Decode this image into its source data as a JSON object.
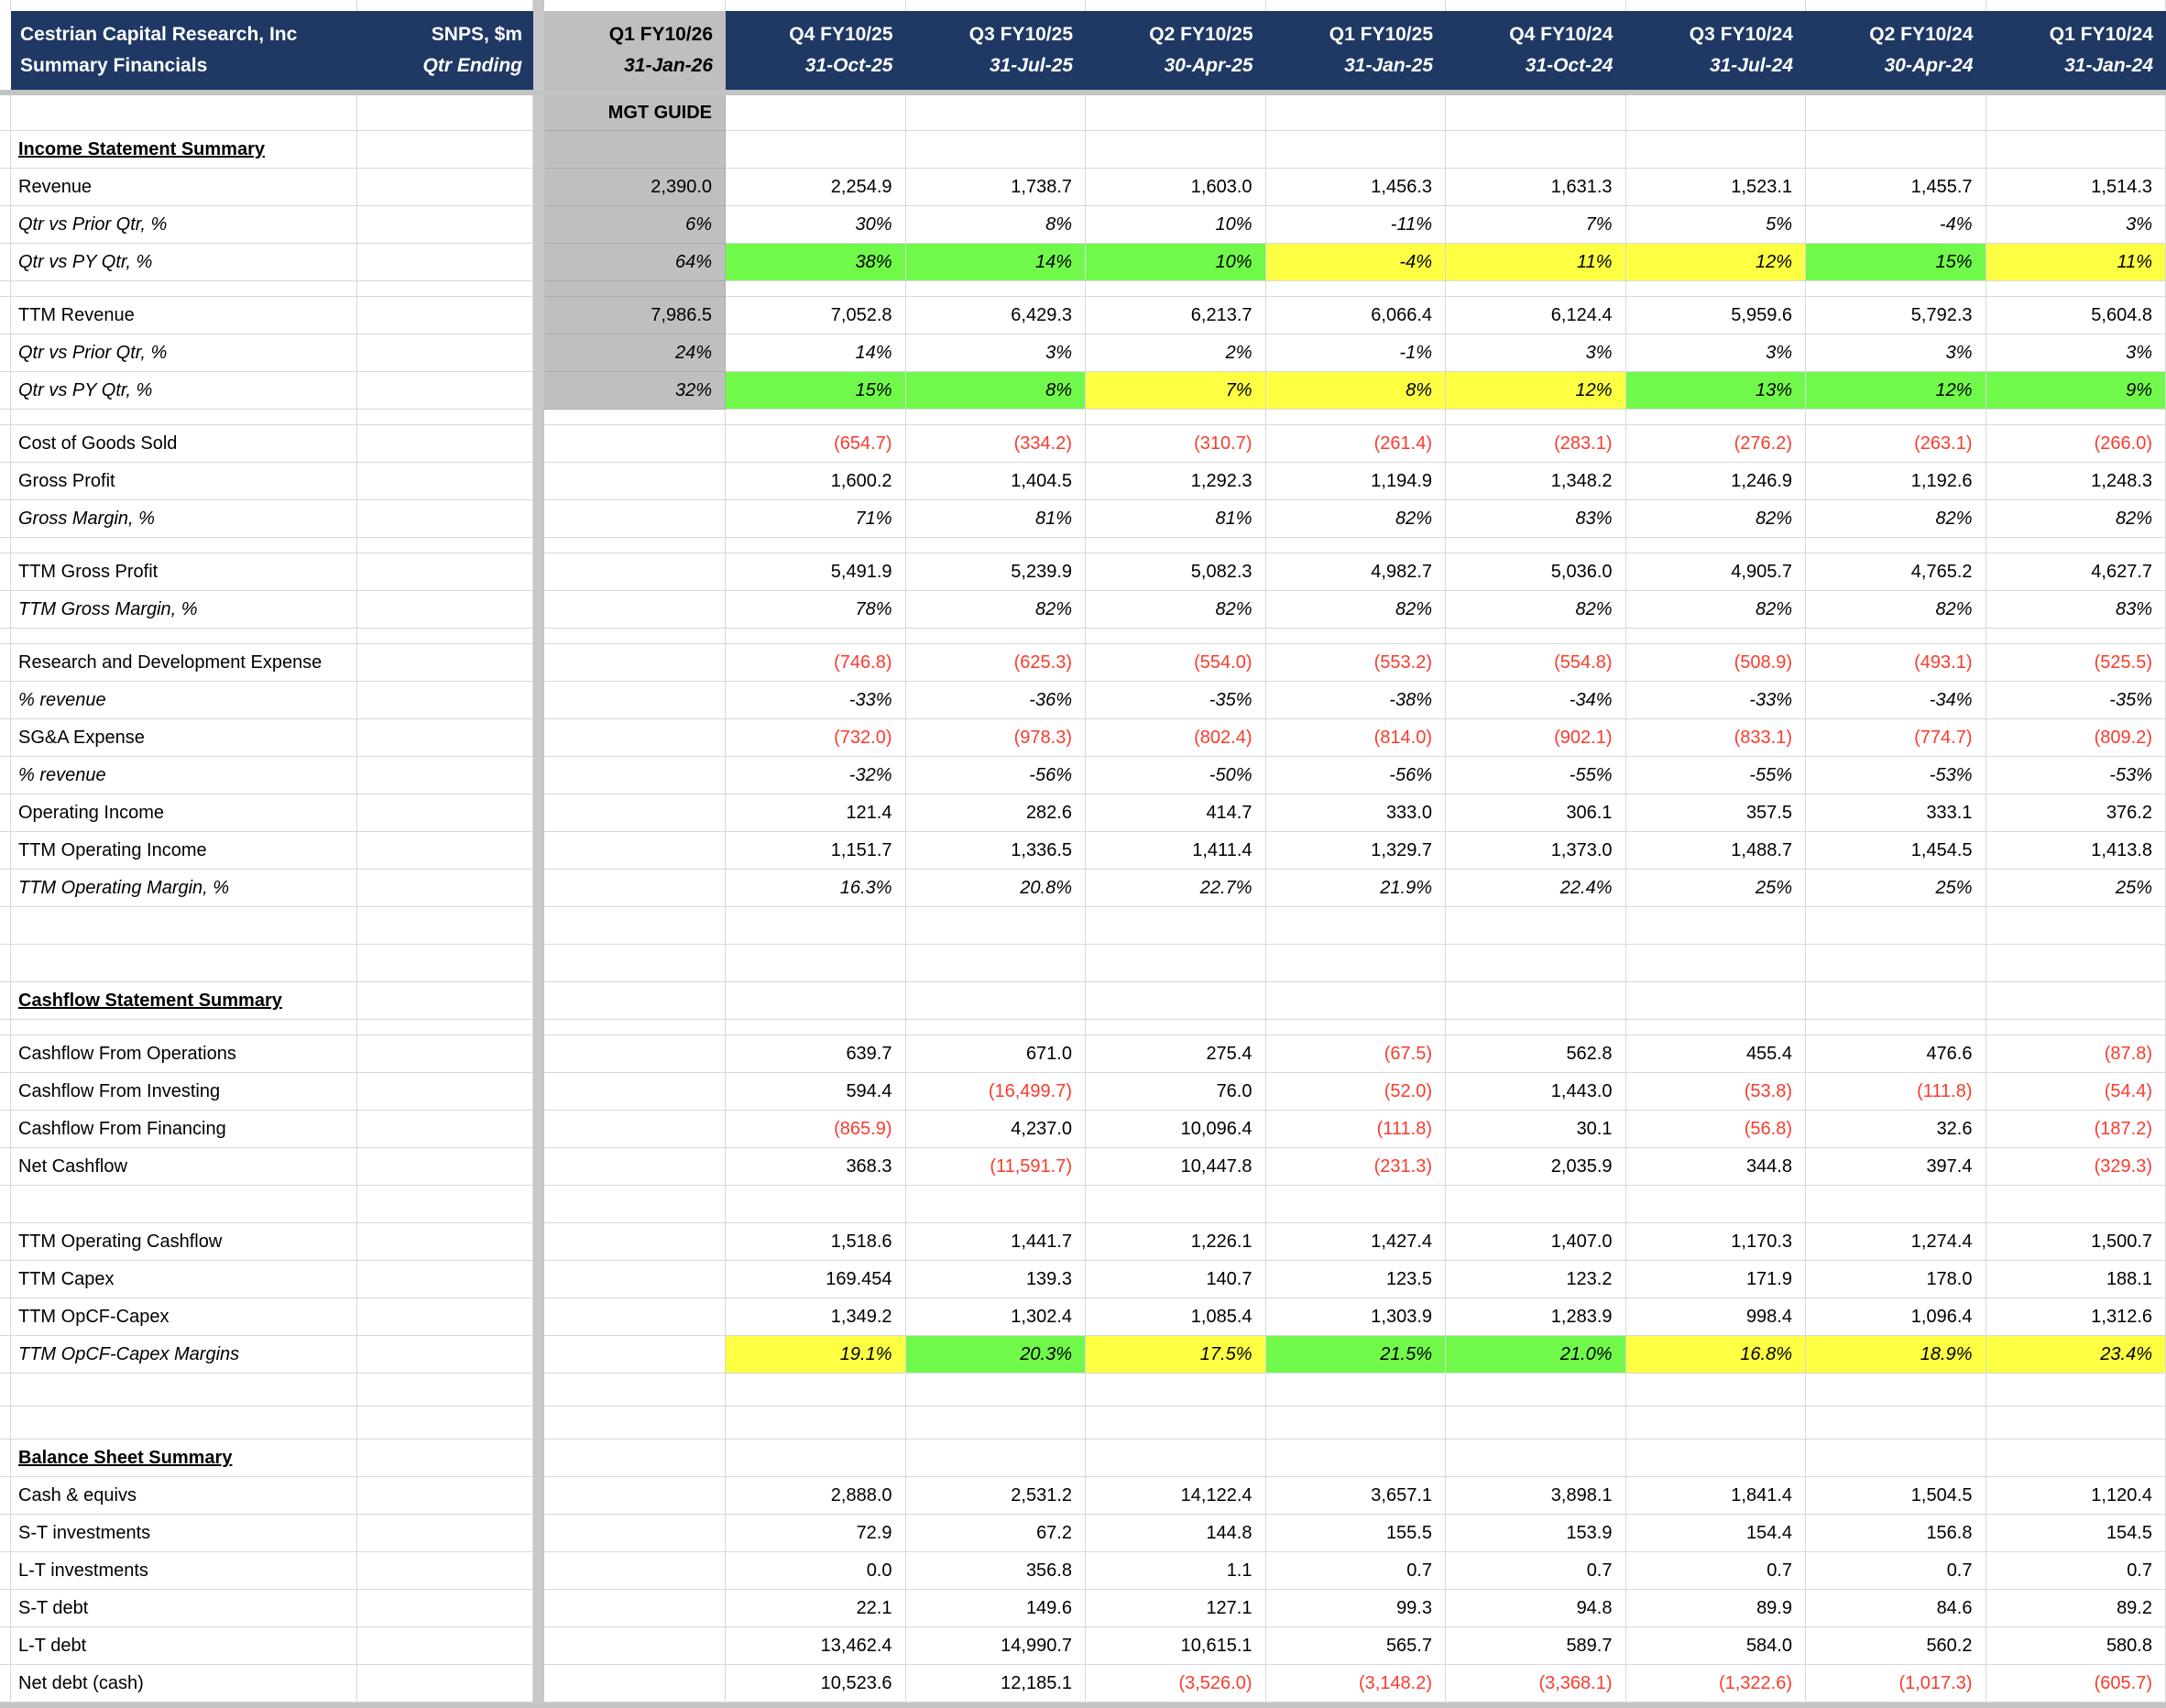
{
  "title": {
    "company": "Cestrian Capital Research, Inc",
    "subtitle": "Summary Financials",
    "ticker": "SNPS, $m",
    "qtr_ending": "Qtr Ending"
  },
  "guide_column": {
    "period": "Q1 FY10/26",
    "date": "31-Jan-26",
    "label": "MGT GUIDE"
  },
  "quarter_columns": [
    {
      "period": "Q4 FY10/25",
      "date": "31-Oct-25"
    },
    {
      "period": "Q3 FY10/25",
      "date": "31-Jul-25"
    },
    {
      "period": "Q2 FY10/25",
      "date": "30-Apr-25"
    },
    {
      "period": "Q1 FY10/25",
      "date": "31-Jan-25"
    },
    {
      "period": "Q4 FY10/24",
      "date": "31-Oct-24"
    },
    {
      "period": "Q3 FY10/24",
      "date": "31-Jul-24"
    },
    {
      "period": "Q2 FY10/24",
      "date": "30-Apr-24"
    },
    {
      "period": "Q1 FY10/24",
      "date": "31-Jan-24"
    }
  ],
  "colors": {
    "navy": "#1F3864",
    "header_gray": "#BFBFBF",
    "divider_gray": "#C8C8C8",
    "green": "#70F94B",
    "yellow": "#FDFF43",
    "red": "#F93B2D",
    "grid": "#D9D9D9"
  },
  "rows": [
    {
      "type": "section",
      "label": "Income Statement Summary",
      "guide_gray": true
    },
    {
      "type": "data",
      "label": "Revenue",
      "guide": "2,390.0",
      "guide_gray": true,
      "values": [
        "2,254.9",
        "1,738.7",
        "1,603.0",
        "1,456.3",
        "1,631.3",
        "1,523.1",
        "1,455.7",
        "1,514.3"
      ]
    },
    {
      "type": "data",
      "label": "Qtr vs Prior Qtr, %",
      "italic": true,
      "guide": "6%",
      "guide_gray": true,
      "values": [
        "30%",
        "8%",
        "10%",
        "-11%",
        "7%",
        "5%",
        "-4%",
        "3%"
      ]
    },
    {
      "type": "data",
      "label": "Qtr vs PY Qtr, %",
      "italic": true,
      "guide": "64%",
      "guide_gray": true,
      "values": [
        "38%",
        "14%",
        "10%",
        "-4%",
        "11%",
        "12%",
        "15%",
        "11%"
      ],
      "fills": [
        "green",
        "green",
        "green",
        "yellow",
        "yellow",
        "yellow",
        "green",
        "yellow"
      ]
    },
    {
      "type": "spacer",
      "size": "sm",
      "guide_gray": true
    },
    {
      "type": "data",
      "label": "TTM Revenue",
      "guide": "7,986.5",
      "guide_gray": true,
      "values": [
        "7,052.8",
        "6,429.3",
        "6,213.7",
        "6,066.4",
        "6,124.4",
        "5,959.6",
        "5,792.3",
        "5,604.8"
      ]
    },
    {
      "type": "data",
      "label": "Qtr vs Prior Qtr, %",
      "italic": true,
      "guide": "24%",
      "guide_gray": true,
      "values": [
        "14%",
        "3%",
        "2%",
        "-1%",
        "3%",
        "3%",
        "3%",
        "3%"
      ]
    },
    {
      "type": "data",
      "label": "Qtr vs PY Qtr, %",
      "italic": true,
      "guide": "32%",
      "guide_gray": true,
      "values": [
        "15%",
        "8%",
        "7%",
        "8%",
        "12%",
        "13%",
        "12%",
        "9%"
      ],
      "fills": [
        "green",
        "green",
        "yellow",
        "yellow",
        "yellow",
        "green",
        "green",
        "green"
      ]
    },
    {
      "type": "spacer",
      "size": "sm"
    },
    {
      "type": "data",
      "label": "Cost of Goods Sold",
      "values": [
        "(654.7)",
        "(334.2)",
        "(310.7)",
        "(261.4)",
        "(283.1)",
        "(276.2)",
        "(263.1)",
        "(266.0)"
      ]
    },
    {
      "type": "data",
      "label": "Gross Profit",
      "values": [
        "1,600.2",
        "1,404.5",
        "1,292.3",
        "1,194.9",
        "1,348.2",
        "1,246.9",
        "1,192.6",
        "1,248.3"
      ]
    },
    {
      "type": "data",
      "label": "Gross Margin, %",
      "italic": true,
      "values": [
        "71%",
        "81%",
        "81%",
        "82%",
        "83%",
        "82%",
        "82%",
        "82%"
      ]
    },
    {
      "type": "spacer",
      "size": "sm"
    },
    {
      "type": "data",
      "label": "TTM Gross Profit",
      "values": [
        "5,491.9",
        "5,239.9",
        "5,082.3",
        "4,982.7",
        "5,036.0",
        "4,905.7",
        "4,765.2",
        "4,627.7"
      ]
    },
    {
      "type": "data",
      "label": "TTM Gross Margin, %",
      "italic": true,
      "values": [
        "78%",
        "82%",
        "82%",
        "82%",
        "82%",
        "82%",
        "82%",
        "83%"
      ]
    },
    {
      "type": "spacer",
      "size": "sm"
    },
    {
      "type": "data",
      "label": "Research and Development Expense",
      "values": [
        "(746.8)",
        "(625.3)",
        "(554.0)",
        "(553.2)",
        "(554.8)",
        "(508.9)",
        "(493.1)",
        "(525.5)"
      ]
    },
    {
      "type": "data",
      "label": "% revenue",
      "italic": true,
      "values": [
        "-33%",
        "-36%",
        "-35%",
        "-38%",
        "-34%",
        "-33%",
        "-34%",
        "-35%"
      ]
    },
    {
      "type": "data",
      "label": "SG&A Expense",
      "values": [
        "(732.0)",
        "(978.3)",
        "(802.4)",
        "(814.0)",
        "(902.1)",
        "(833.1)",
        "(774.7)",
        "(809.2)"
      ]
    },
    {
      "type": "data",
      "label": "% revenue",
      "italic": true,
      "values": [
        "-32%",
        "-56%",
        "-50%",
        "-56%",
        "-55%",
        "-55%",
        "-53%",
        "-53%"
      ]
    },
    {
      "type": "data",
      "label": "Operating Income",
      "values": [
        "121.4",
        "282.6",
        "414.7",
        "333.0",
        "306.1",
        "357.5",
        "333.1",
        "376.2"
      ]
    },
    {
      "type": "data",
      "label": "TTM Operating Income",
      "values": [
        "1,151.7",
        "1,336.5",
        "1,411.4",
        "1,329.7",
        "1,373.0",
        "1,488.7",
        "1,454.5",
        "1,413.8"
      ]
    },
    {
      "type": "data",
      "label": "TTM Operating Margin, %",
      "italic": true,
      "values": [
        "16.3%",
        "20.8%",
        "22.7%",
        "21.9%",
        "22.4%",
        "25%",
        "25%",
        "25%"
      ]
    },
    {
      "type": "spacer",
      "size": "lg"
    },
    {
      "type": "spacer",
      "size": "lg"
    },
    {
      "type": "section",
      "label": "Cashflow Statement Summary"
    },
    {
      "type": "spacer",
      "size": "sm"
    },
    {
      "type": "data",
      "label": "Cashflow From Operations",
      "values": [
        "639.7",
        "671.0",
        "275.4",
        "(67.5)",
        "562.8",
        "455.4",
        "476.6",
        "(87.8)"
      ]
    },
    {
      "type": "data",
      "label": "Cashflow From Investing",
      "values": [
        "594.4",
        "(16,499.7)",
        "76.0",
        "(52.0)",
        "1,443.0",
        "(53.8)",
        "(111.8)",
        "(54.4)"
      ]
    },
    {
      "type": "data",
      "label": "Cashflow From Financing",
      "values": [
        "(865.9)",
        "4,237.0",
        "10,096.4",
        "(111.8)",
        "30.1",
        "(56.8)",
        "32.6",
        "(187.2)"
      ]
    },
    {
      "type": "data",
      "label": "Net Cashflow",
      "values": [
        "368.3",
        "(11,591.7)",
        "10,447.8",
        "(231.3)",
        "2,035.9",
        "344.8",
        "397.4",
        "(329.3)"
      ]
    },
    {
      "type": "spacer",
      "size": "lg"
    },
    {
      "type": "data",
      "label": "TTM Operating Cashflow",
      "values": [
        "1,518.6",
        "1,441.7",
        "1,226.1",
        "1,427.4",
        "1,407.0",
        "1,170.3",
        "1,274.4",
        "1,500.7"
      ]
    },
    {
      "type": "data",
      "label": "TTM Capex",
      "values": [
        "169.454",
        "139.3",
        "140.7",
        "123.5",
        "123.2",
        "171.9",
        "178.0",
        "188.1"
      ]
    },
    {
      "type": "data",
      "label": "TTM OpCF-Capex",
      "values": [
        "1,349.2",
        "1,302.4",
        "1,085.4",
        "1,303.9",
        "1,283.9",
        "998.4",
        "1,096.4",
        "1,312.6"
      ]
    },
    {
      "type": "data",
      "label": "TTM OpCF-Capex Margins",
      "italic": true,
      "values": [
        "19.1%",
        "20.3%",
        "17.5%",
        "21.5%",
        "21.0%",
        "16.8%",
        "18.9%",
        "23.4%"
      ],
      "fills": [
        "yellow",
        "green",
        "yellow",
        "green",
        "green",
        "yellow",
        "yellow",
        "yellow"
      ]
    },
    {
      "type": "spacer",
      "size": "md"
    },
    {
      "type": "spacer",
      "size": "md"
    },
    {
      "type": "section",
      "label": "Balance Sheet Summary"
    },
    {
      "type": "data",
      "label": "Cash & equivs",
      "values": [
        "2,888.0",
        "2,531.2",
        "14,122.4",
        "3,657.1",
        "3,898.1",
        "1,841.4",
        "1,504.5",
        "1,120.4"
      ]
    },
    {
      "type": "data",
      "label": "S-T investments",
      "values": [
        "72.9",
        "67.2",
        "144.8",
        "155.5",
        "153.9",
        "154.4",
        "156.8",
        "154.5"
      ]
    },
    {
      "type": "data",
      "label": "L-T investments",
      "values": [
        "0.0",
        "356.8",
        "1.1",
        "0.7",
        "0.7",
        "0.7",
        "0.7",
        "0.7"
      ]
    },
    {
      "type": "data",
      "label": "S-T debt",
      "values": [
        "22.1",
        "149.6",
        "127.1",
        "99.3",
        "94.8",
        "89.9",
        "84.6",
        "89.2"
      ]
    },
    {
      "type": "data",
      "label": "L-T debt",
      "values": [
        "13,462.4",
        "14,990.7",
        "10,615.1",
        "565.7",
        "589.7",
        "584.0",
        "560.2",
        "580.8"
      ]
    },
    {
      "type": "data",
      "label": "Net debt (cash)",
      "values": [
        "10,523.6",
        "12,185.1",
        "(3,526.0)",
        "(3,148.2)",
        "(3,368.1)",
        "(1,322.6)",
        "(1,017.3)",
        "(605.7)"
      ]
    }
  ]
}
